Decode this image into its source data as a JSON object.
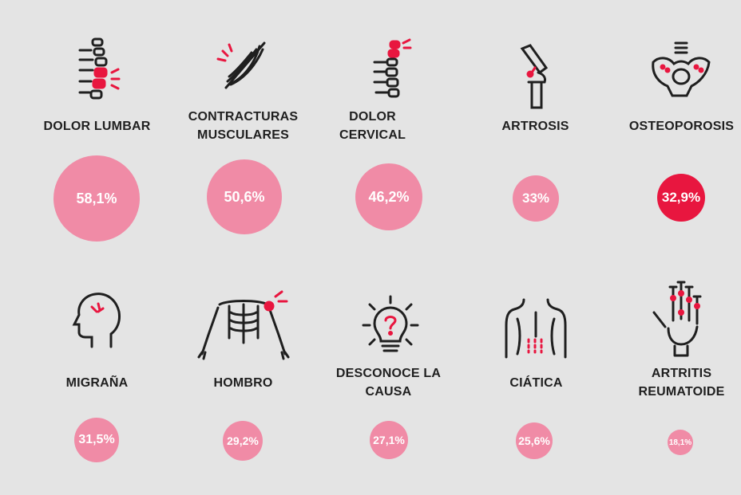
{
  "colors": {
    "bubble": "#f08ba6",
    "bubble_highlight": "#e8163f",
    "accent": "#e8163f",
    "line": "#1f1f1f",
    "background": "#e4e4e4"
  },
  "items": [
    {
      "icon": "spine-lumbar-icon",
      "label_lines": [
        "DOLOR LUMBAR"
      ],
      "value": "58,1%",
      "percent": 58.1
    },
    {
      "icon": "muscle-icon",
      "label_lines": [
        "CONTRACTURAS",
        "MUSCULARES"
      ],
      "value": "50,6%",
      "percent": 50.6
    },
    {
      "icon": "spine-cervical-icon",
      "label_lines": [
        "DOLOR",
        "CERVICAL"
      ],
      "value": "46,2%",
      "percent": 46.2
    },
    {
      "icon": "knee-joint-icon",
      "label_lines": [
        "ARTROSIS"
      ],
      "value": "33%",
      "percent": 33
    },
    {
      "icon": "pelvis-icon",
      "label_lines": [
        "OSTEOPOROSIS"
      ],
      "value": "32,9%",
      "percent": 32.9,
      "highlight": true
    },
    {
      "icon": "head-migraine-icon",
      "label_lines": [
        "MIGRAÑA"
      ],
      "value": "31,5%",
      "percent": 31.5
    },
    {
      "icon": "shoulder-skeleton-icon",
      "label_lines": [
        "HOMBRO"
      ],
      "value": "29,2%",
      "percent": 29.2
    },
    {
      "icon": "lightbulb-question-icon",
      "label_lines": [
        "DESCONOCE LA",
        "CAUSA"
      ],
      "value": "27,1%",
      "percent": 27.1
    },
    {
      "icon": "back-sciatica-icon",
      "label_lines": [
        "CIÁTICA"
      ],
      "value": "25,6%",
      "percent": 25.6
    },
    {
      "icon": "hand-arthritis-icon",
      "label_lines": [
        "ARTRITIS",
        "REUMATOIDE"
      ],
      "value": "18,1%",
      "percent": 18.1
    }
  ]
}
